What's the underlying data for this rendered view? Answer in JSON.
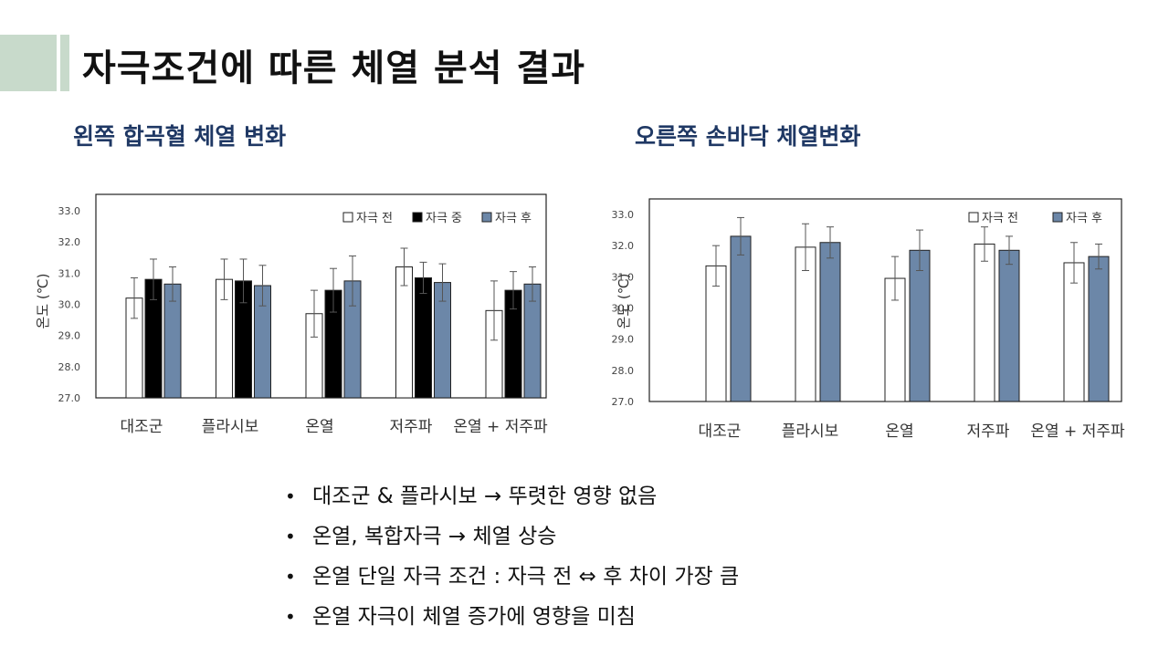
{
  "title": "자극조건에 따른 체열 분석 결과",
  "colors": {
    "accent": "#c8dacb",
    "heading": "#1f3864",
    "before": "#ffffff",
    "during": "#000000",
    "after": "#6c87a8"
  },
  "chart_data": [
    {
      "type": "bar",
      "title": "왼쪽 합곡혈 체열 변화",
      "ylabel": "온도 (℃)",
      "ylim": [
        27.0,
        33.0
      ],
      "yticks": [
        "27.0",
        "28.0",
        "29.0",
        "30.0",
        "31.0",
        "32.0",
        "33.0"
      ],
      "categories": [
        "대조군",
        "플라시보",
        "온열",
        "저주파",
        "온열 + 저주파"
      ],
      "legend_position": "top-right",
      "series": [
        {
          "name": "자극 전",
          "color": "#ffffff",
          "values": [
            30.2,
            30.8,
            29.7,
            31.2,
            29.8
          ],
          "errors": [
            0.65,
            0.65,
            0.75,
            0.6,
            0.95
          ]
        },
        {
          "name": "자극 중",
          "color": "#000000",
          "values": [
            30.8,
            30.75,
            30.45,
            30.85,
            30.45
          ],
          "errors": [
            0.65,
            0.7,
            0.7,
            0.5,
            0.6
          ]
        },
        {
          "name": "자극 후",
          "color": "#6c87a8",
          "values": [
            30.65,
            30.6,
            30.75,
            30.7,
            30.65
          ],
          "errors": [
            0.55,
            0.65,
            0.8,
            0.6,
            0.55
          ]
        }
      ]
    },
    {
      "type": "bar",
      "title": "오른쪽 손바닥 체열변화",
      "ylabel": "온도 (℃)",
      "ylim": [
        27.0,
        33.0
      ],
      "yticks": [
        "27.0",
        "28.0",
        "29.0",
        "30.0",
        "31.0",
        "32.0",
        "33.0"
      ],
      "categories": [
        "대조군",
        "플라시보",
        "온열",
        "저주파",
        "온열 + 저주파"
      ],
      "legend_position": "top-right",
      "series": [
        {
          "name": "자극 전",
          "color": "#ffffff",
          "values": [
            31.35,
            31.95,
            30.95,
            32.05,
            31.45
          ],
          "errors": [
            0.65,
            0.75,
            0.7,
            0.55,
            0.65
          ]
        },
        {
          "name": "자극 후",
          "color": "#6c87a8",
          "values": [
            32.3,
            32.1,
            31.85,
            31.85,
            31.65
          ],
          "errors": [
            0.6,
            0.5,
            0.65,
            0.45,
            0.4
          ]
        }
      ]
    }
  ],
  "bullets": [
    "대조군 & 플라시보 → 뚜렷한 영향 없음",
    "온열, 복합자극 → 체열 상승",
    "온열 단일 자극 조건 : 자극 전 ⇔ 후 차이 가장 큼",
    "온열 자극이 체열 증가에 영향을 미침"
  ],
  "bullet_symbol": "•"
}
